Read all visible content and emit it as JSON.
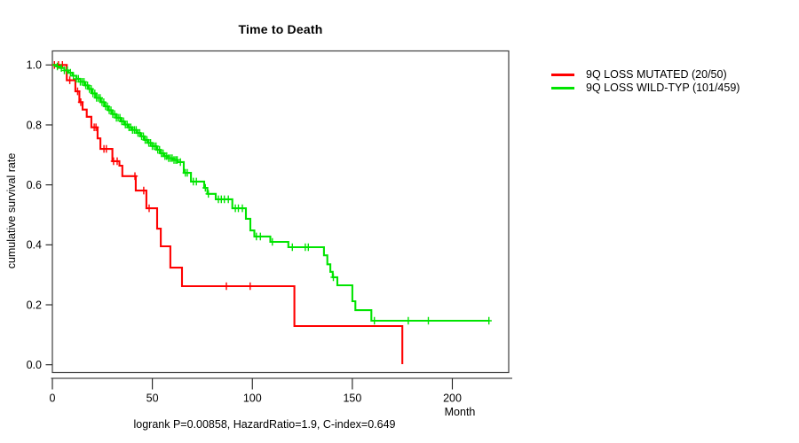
{
  "chart_data": {
    "type": "line",
    "variant": "kaplan-meier-survival",
    "title": "Time to Death",
    "xlabel": "Month",
    "ylabel": "cumulative survival rate",
    "footer_annotation": "logrank P=0.00858, HazardRatio=1.9, C-index=0.649",
    "xlim": [
      0,
      222
    ],
    "ylim": [
      0.0,
      1.0
    ],
    "xticks": [
      "0",
      "50",
      "100",
      "150",
      "200"
    ],
    "yticks": [
      "0.0",
      "0.2",
      "0.4",
      "0.6",
      "0.8",
      "1.0"
    ],
    "grid": false,
    "legend_position": "outside-top-right",
    "series": [
      {
        "name": "9Q LOSS MUTATED (20/50)",
        "color": "#ff0000",
        "steps": [
          [
            0,
            1.0
          ],
          [
            7.2,
            0.949
          ],
          [
            11.5,
            0.912
          ],
          [
            13.5,
            0.876
          ],
          [
            15.1,
            0.851
          ],
          [
            17.2,
            0.827
          ],
          [
            19.5,
            0.792
          ],
          [
            22.6,
            0.755
          ],
          [
            24,
            0.72
          ],
          [
            30,
            0.679
          ],
          [
            33.5,
            0.664
          ],
          [
            35,
            0.629
          ],
          [
            41.7,
            0.581
          ],
          [
            47,
            0.522
          ],
          [
            52.4,
            0.454
          ],
          [
            54.2,
            0.395
          ],
          [
            59,
            0.324
          ],
          [
            64.8,
            0.262
          ],
          [
            121,
            0.129
          ],
          [
            175,
            0.002
          ]
        ],
        "censor_months": [
          1,
          3,
          5,
          8.7,
          12.6,
          14.2,
          20.9,
          21.8,
          25.8,
          27,
          30.6,
          32.4,
          41.3,
          45.7,
          48.4,
          87,
          98.9
        ]
      },
      {
        "name": "9Q LOSS WILD-TYP (101/459)",
        "color": "#00e400",
        "steps": [
          [
            0,
            1.0
          ],
          [
            2,
            0.995
          ],
          [
            4,
            0.99
          ],
          [
            6,
            0.982
          ],
          [
            8,
            0.974
          ],
          [
            10,
            0.964
          ],
          [
            12,
            0.954
          ],
          [
            14,
            0.944
          ],
          [
            16,
            0.932
          ],
          [
            18,
            0.92
          ],
          [
            20,
            0.905
          ],
          [
            22,
            0.89
          ],
          [
            24,
            0.876
          ],
          [
            26,
            0.862
          ],
          [
            28,
            0.849
          ],
          [
            30,
            0.836
          ],
          [
            32,
            0.824
          ],
          [
            34,
            0.812
          ],
          [
            36,
            0.801
          ],
          [
            38,
            0.792
          ],
          [
            40,
            0.783
          ],
          [
            42,
            0.773
          ],
          [
            44,
            0.762
          ],
          [
            46,
            0.75
          ],
          [
            48,
            0.74
          ],
          [
            50,
            0.729
          ],
          [
            52,
            0.717
          ],
          [
            54,
            0.705
          ],
          [
            56,
            0.696
          ],
          [
            58,
            0.689
          ],
          [
            60,
            0.683
          ],
          [
            62.6,
            0.676
          ],
          [
            65.7,
            0.64
          ],
          [
            69.3,
            0.611
          ],
          [
            75.9,
            0.59
          ],
          [
            77.5,
            0.57
          ],
          [
            81.7,
            0.552
          ],
          [
            90,
            0.522
          ],
          [
            96.8,
            0.487
          ],
          [
            99,
            0.448
          ],
          [
            101,
            0.428
          ],
          [
            109,
            0.41
          ],
          [
            118,
            0.392
          ],
          [
            135.8,
            0.365
          ],
          [
            137.5,
            0.335
          ],
          [
            139,
            0.31
          ],
          [
            140.2,
            0.292
          ],
          [
            142.5,
            0.265
          ],
          [
            150,
            0.212
          ],
          [
            151.5,
            0.182
          ],
          [
            159.5,
            0.147
          ],
          [
            218.6,
            0.147
          ]
        ],
        "censor_months": [
          2.5,
          4.5,
          6,
          7.5,
          9,
          10.5,
          12,
          13,
          14,
          14.9,
          15.8,
          16.7,
          17.6,
          18.5,
          19.4,
          20.3,
          21.2,
          22.1,
          23,
          23.9,
          24.8,
          25.7,
          26.6,
          27.5,
          28.4,
          29.3,
          30.2,
          31.1,
          32,
          32.9,
          33.8,
          34.7,
          35.6,
          36.5,
          37.4,
          38.3,
          39.2,
          40.1,
          41,
          41.9,
          42.8,
          43.7,
          44.6,
          45.5,
          46.4,
          47.3,
          48.2,
          49.1,
          50,
          50.9,
          51.8,
          52.7,
          53.6,
          54.5,
          55.4,
          56.3,
          57.2,
          58.1,
          59,
          59.9,
          60.8,
          61.7,
          62.4,
          64,
          66.5,
          67.5,
          70.5,
          72,
          76.5,
          78,
          83,
          84.5,
          86,
          88,
          91.5,
          93,
          95,
          102,
          104,
          110,
          120,
          126.5,
          128,
          140.5,
          161,
          178,
          188,
          218.3
        ]
      }
    ]
  }
}
